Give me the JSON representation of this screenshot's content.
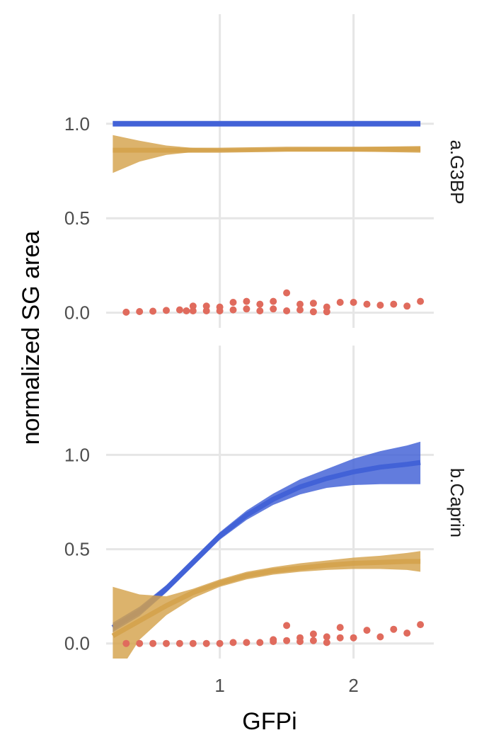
{
  "chart_data": {
    "type": "line",
    "xlabel": "GFPi",
    "ylabel": "normalized SG area",
    "x_ticks": [
      "1",
      "2"
    ],
    "y_ticks": [
      "0.0",
      "0.5",
      "1.0"
    ],
    "xlim": [
      0.15,
      2.6
    ],
    "ylim": [
      -0.08,
      1.58
    ],
    "grid": true,
    "colors": {
      "blue": "#3f5fd6",
      "gold": "#d4a24c",
      "points": "#e06b5d",
      "grid": "#e6e6e6"
    },
    "panels": [
      {
        "strip": "a.G3BP",
        "series": [
          {
            "color": "#3f5fd6",
            "x": [
              0.2,
              0.5,
              1.0,
              1.5,
              2.0,
              2.5
            ],
            "y": [
              1.0,
              1.0,
              1.0,
              1.0,
              1.0,
              1.0
            ],
            "lower": [
              0.985,
              0.985,
              0.985,
              0.985,
              0.985,
              0.985
            ],
            "upper": [
              1.015,
              1.015,
              1.015,
              1.015,
              1.015,
              1.015
            ]
          },
          {
            "color": "#d4a24c",
            "x": [
              0.2,
              0.4,
              0.6,
              0.8,
              1.0,
              1.5,
              2.0,
              2.5
            ],
            "y": [
              0.86,
              0.86,
              0.86,
              0.86,
              0.86,
              0.865,
              0.865,
              0.865
            ],
            "lower": [
              0.74,
              0.8,
              0.835,
              0.85,
              0.853,
              0.855,
              0.853,
              0.847
            ],
            "upper": [
              0.94,
              0.91,
              0.885,
              0.872,
              0.867,
              0.872,
              0.877,
              0.882
            ]
          }
        ],
        "points": {
          "color": "#e06b5d",
          "x": [
            0.3,
            0.4,
            0.5,
            0.6,
            0.7,
            0.75,
            0.8,
            0.8,
            0.9,
            0.9,
            1.0,
            1.0,
            1.1,
            1.1,
            1.2,
            1.2,
            1.3,
            1.3,
            1.4,
            1.4,
            1.5,
            1.5,
            1.6,
            1.6,
            1.7,
            1.7,
            1.8,
            1.8,
            1.9,
            2.0,
            2.1,
            2.2,
            2.3,
            2.4,
            2.5
          ],
          "y": [
            0.003,
            0.006,
            0.008,
            0.012,
            0.015,
            0.01,
            0.035,
            0.01,
            0.035,
            0.01,
            0.03,
            0.01,
            0.055,
            0.015,
            0.06,
            0.02,
            0.045,
            0.01,
            0.06,
            0.02,
            0.105,
            0.01,
            0.045,
            0.015,
            0.05,
            0.005,
            0.03,
            0.005,
            0.055,
            0.055,
            0.045,
            0.04,
            0.045,
            0.035,
            0.06
          ]
        }
      },
      {
        "strip": "b.Caprin",
        "series": [
          {
            "color": "#3f5fd6",
            "x": [
              0.2,
              0.4,
              0.6,
              0.8,
              1.0,
              1.2,
              1.4,
              1.6,
              1.8,
              2.0,
              2.2,
              2.4,
              2.5
            ],
            "y": [
              0.085,
              0.17,
              0.29,
              0.43,
              0.57,
              0.68,
              0.765,
              0.83,
              0.875,
              0.91,
              0.935,
              0.95,
              0.96
            ],
            "lower": [
              0.06,
              0.145,
              0.27,
              0.41,
              0.55,
              0.655,
              0.735,
              0.79,
              0.825,
              0.84,
              0.845,
              0.845,
              0.845
            ],
            "upper": [
              0.11,
              0.195,
              0.31,
              0.45,
              0.59,
              0.705,
              0.795,
              0.87,
              0.925,
              0.98,
              1.02,
              1.05,
              1.07
            ]
          },
          {
            "color": "#d4a24c",
            "x": [
              0.2,
              0.4,
              0.6,
              0.8,
              1.0,
              1.2,
              1.4,
              1.6,
              1.8,
              2.0,
              2.2,
              2.4,
              2.5
            ],
            "y": [
              0.04,
              0.12,
              0.2,
              0.27,
              0.32,
              0.36,
              0.385,
              0.4,
              0.415,
              0.425,
              0.43,
              0.435,
              0.435
            ],
            "lower": [
              -0.2,
              0.02,
              0.15,
              0.24,
              0.3,
              0.34,
              0.365,
              0.38,
              0.39,
              0.395,
              0.395,
              0.39,
              0.38
            ],
            "upper": [
              0.3,
              0.26,
              0.25,
              0.29,
              0.34,
              0.38,
              0.405,
              0.425,
              0.44,
              0.455,
              0.465,
              0.48,
              0.49
            ]
          }
        ],
        "points": {
          "color": "#e06b5d",
          "x": [
            0.3,
            0.4,
            0.5,
            0.6,
            0.7,
            0.8,
            0.9,
            1.0,
            1.1,
            1.2,
            1.3,
            1.4,
            1.4,
            1.5,
            1.5,
            1.6,
            1.6,
            1.7,
            1.7,
            1.8,
            1.8,
            1.9,
            1.9,
            2.0,
            2.1,
            2.2,
            2.3,
            2.4,
            2.5
          ],
          "y": [
            0.0,
            0.0,
            0.0,
            0.0,
            0.0,
            0.0,
            0.0,
            0.0,
            0.005,
            0.005,
            0.005,
            0.02,
            0.01,
            0.095,
            0.015,
            0.03,
            0.01,
            0.05,
            0.015,
            0.035,
            0.005,
            0.085,
            0.03,
            0.03,
            0.07,
            0.035,
            0.075,
            0.055,
            0.1
          ]
        }
      }
    ]
  }
}
